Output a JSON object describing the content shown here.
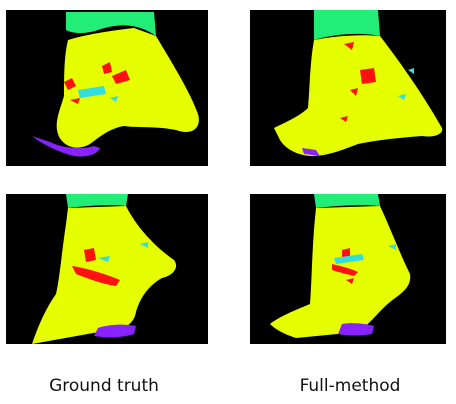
{
  "captions": {
    "left": "Ground truth",
    "right": "Full-method"
  },
  "colors": {
    "background": "#000000",
    "class_yellow": "#e6ff00",
    "class_green": "#22ee77",
    "class_red": "#ff1111",
    "class_cyan": "#33dddd",
    "class_purple": "#8822ff"
  },
  "panels": [
    {
      "name": "ground-truth-top"
    },
    {
      "name": "full-method-top"
    },
    {
      "name": "ground-truth-bottom"
    },
    {
      "name": "full-method-bottom"
    }
  ]
}
